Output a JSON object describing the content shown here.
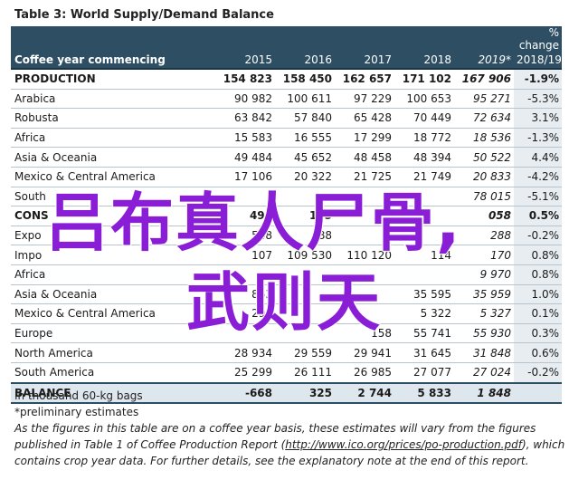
{
  "title": "Table 3: World Supply/Demand Balance",
  "header": {
    "pct_line1": "% change",
    "row_label": "Coffee year commencing",
    "years": [
      "2015",
      "2016",
      "2017",
      "2018",
      "2019*"
    ],
    "pct_line2": "2018/19"
  },
  "rows": [
    {
      "label": "PRODUCTION",
      "v": [
        "154 823",
        "158 450",
        "162 657",
        "171 102",
        "167 906"
      ],
      "pct": "-1.9%",
      "bold": true
    },
    {
      "label": "Arabica",
      "v": [
        "90 982",
        "100 611",
        "97 229",
        "100 653",
        "95 271"
      ],
      "pct": "-5.3%"
    },
    {
      "label": "Robusta",
      "v": [
        "63 842",
        "57 840",
        "65 428",
        "70 449",
        "72 634"
      ],
      "pct": "3.1%"
    },
    {
      "label": "Africa",
      "v": [
        "15 583",
        "16 555",
        "17 299",
        "18 772",
        "18 536"
      ],
      "pct": "-1.3%"
    },
    {
      "label": "Asia & Oceania",
      "v": [
        "49 484",
        "45 652",
        "48 458",
        "48 394",
        "50 522"
      ],
      "pct": "4.4%"
    },
    {
      "label": "Mexico & Central America",
      "v": [
        "17 106",
        "20 322",
        "21 725",
        "21 749",
        "20 833"
      ],
      "pct": "-4.2%"
    },
    {
      "label": "South",
      "v": [
        "",
        "",
        "",
        "",
        "78 015"
      ],
      "pct": "-5.1%"
    },
    {
      "label": "CONS",
      "v": [
        "491",
        "125",
        "",
        "",
        "058"
      ],
      "pct": "0.5%",
      "bold": true
    },
    {
      "label": "Expo",
      "v": [
        "548",
        "88",
        "",
        "",
        "288"
      ],
      "pct": "-0.2%"
    },
    {
      "label": "Impo",
      "v": [
        "107",
        "109 530",
        "110 120",
        "114",
        "170"
      ],
      "pct": "0.8%"
    },
    {
      "label": "Africa",
      "v": [
        "",
        "",
        "",
        "",
        "9 970"
      ],
      "pct": "0.8%"
    },
    {
      "label": "Asia & Oceania",
      "v": [
        "863",
        "",
        "",
        "35 595",
        "35 959"
      ],
      "pct": "1.0%"
    },
    {
      "label": "Mexico & Central America",
      "v": [
        "295",
        "",
        "",
        "5 322",
        "5 327"
      ],
      "pct": "0.1%"
    },
    {
      "label": "Europe",
      "v": [
        "",
        "",
        "158",
        "55 741",
        "55 930"
      ],
      "pct": "0.3%"
    },
    {
      "label": "North America",
      "v": [
        "28 934",
        "29 559",
        "29 941",
        "31 645",
        "31 848"
      ],
      "pct": "0.6%"
    },
    {
      "label": "South America",
      "v": [
        "25 299",
        "26 111",
        "26 985",
        "27 077",
        "27 024"
      ],
      "pct": "-0.2%"
    },
    {
      "label": "BALANCE",
      "v": [
        "-668",
        "325",
        "2 744",
        "5 833",
        "1 848"
      ],
      "pct": "",
      "balance": true
    }
  ],
  "notes": {
    "n1": "In thousand 60-kg bags",
    "n2": "*preliminary estimates",
    "n3a": "As the figures in this table are on a coffee year basis, these estimates will vary from the figures published in Table 1 of Coffee Production Report (",
    "link": "http://www.ico.org/prices/po-production.pdf",
    "n3b": "), which contains crop year data. For further details, see the explanatory note at the end of this report."
  },
  "overlay": {
    "line1": "吕布真人尸骨,",
    "line2": "武则天"
  }
}
